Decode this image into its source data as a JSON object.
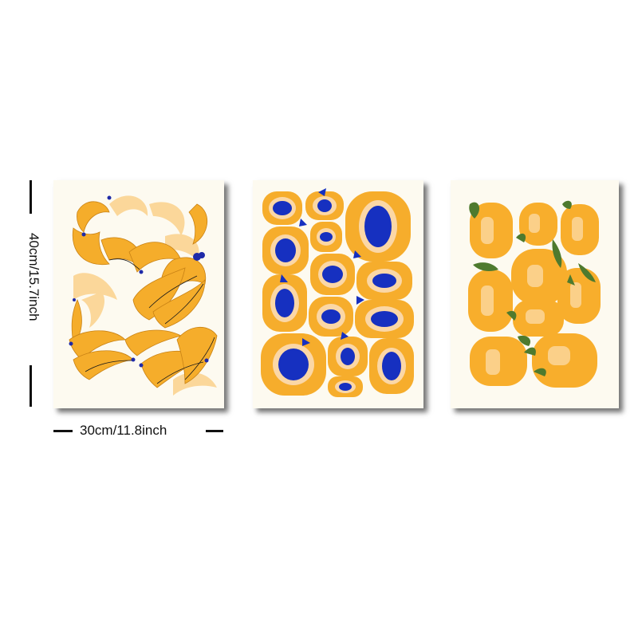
{
  "dimensions": {
    "height_label": "40cm/15.7inch",
    "width_label": "30cm/11.8inch"
  },
  "prints": [
    {
      "subject": "bananas",
      "colors": {
        "fruit": "#f5ad2b",
        "light": "#fbd79a",
        "stem": "#1f2aa8"
      }
    },
    {
      "subject": "apricots",
      "colors": {
        "fruit": "#f6ad2c",
        "pit": "#1630c0",
        "rim": "#fbd7a6"
      }
    },
    {
      "subject": "oranges",
      "colors": {
        "fruit": "#f8ae2c",
        "highlight": "#fcd79a",
        "leaf": "#4e7a2e"
      }
    }
  ]
}
